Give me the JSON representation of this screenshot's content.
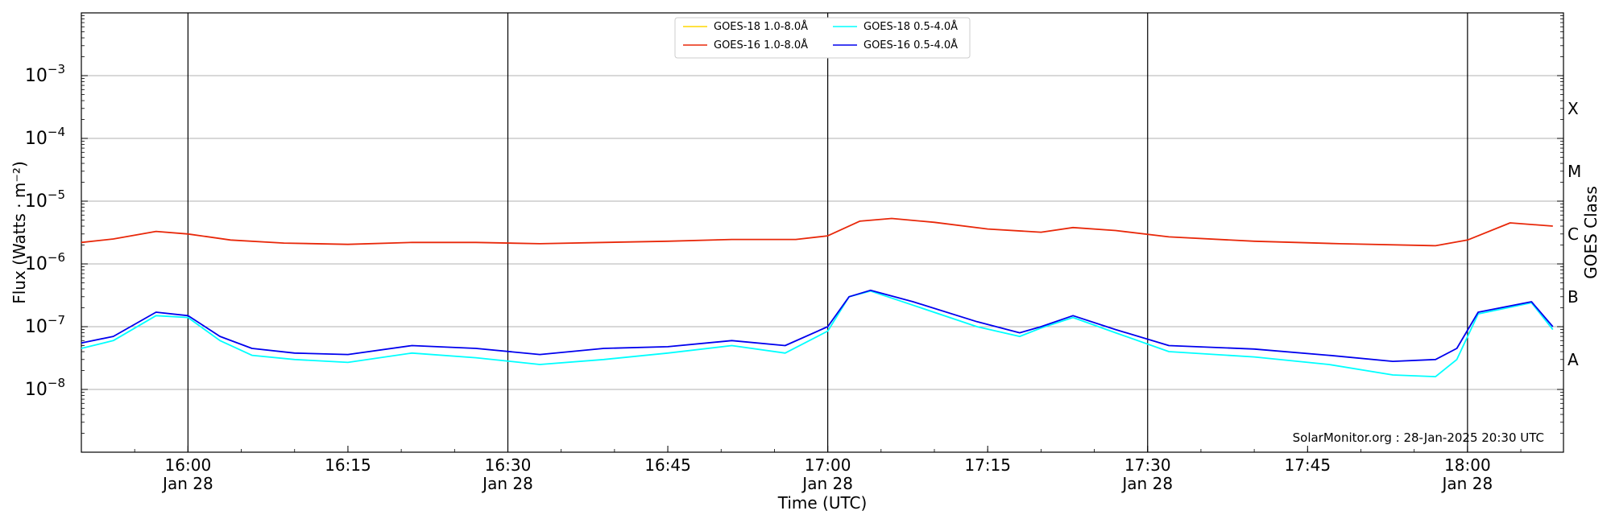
{
  "chart_data": {
    "type": "line",
    "xlabel": "Time (UTC)",
    "ylabel": "Flux (Watts · m⁻²)",
    "right_axis_label": "GOES Class",
    "y_scale": "log",
    "ylim": [
      1e-09,
      0.01
    ],
    "xlim": [
      "2025-01-28 15:50",
      "2025-01-28 18:09"
    ],
    "x_ticks": [
      {
        "t": "2025-01-28 16:00",
        "label": "16:00",
        "sublabel": "Jan 28",
        "major": true
      },
      {
        "t": "2025-01-28 16:15",
        "label": "16:15",
        "sublabel": "",
        "major": false
      },
      {
        "t": "2025-01-28 16:30",
        "label": "16:30",
        "sublabel": "Jan 28",
        "major": true
      },
      {
        "t": "2025-01-28 16:45",
        "label": "16:45",
        "sublabel": "",
        "major": false
      },
      {
        "t": "2025-01-28 17:00",
        "label": "17:00",
        "sublabel": "Jan 28",
        "major": true
      },
      {
        "t": "2025-01-28 17:15",
        "label": "17:15",
        "sublabel": "",
        "major": false
      },
      {
        "t": "2025-01-28 17:30",
        "label": "17:30",
        "sublabel": "Jan 28",
        "major": true
      },
      {
        "t": "2025-01-28 17:45",
        "label": "17:45",
        "sublabel": "",
        "major": false
      },
      {
        "t": "2025-01-28 18:00",
        "label": "18:00",
        "sublabel": "Jan 28",
        "major": true
      }
    ],
    "y_ticks": [
      {
        "value": 1e-08,
        "base": "10",
        "exp": "−8"
      },
      {
        "value": 1e-07,
        "base": "10",
        "exp": "−7"
      },
      {
        "value": 1e-06,
        "base": "10",
        "exp": "−6"
      },
      {
        "value": 1e-05,
        "base": "10",
        "exp": "−5"
      },
      {
        "value": 0.0001,
        "base": "10",
        "exp": "−4"
      },
      {
        "value": 0.001,
        "base": "10",
        "exp": "−3"
      }
    ],
    "goes_classes": [
      {
        "label": "A",
        "center": 3e-08
      },
      {
        "label": "B",
        "center": 3e-07
      },
      {
        "label": "C",
        "center": 3e-06
      },
      {
        "label": "M",
        "center": 3e-05
      },
      {
        "label": "X",
        "center": 0.0003
      }
    ],
    "grid": true,
    "legend_position": "top-center",
    "annotation": "SolarMonitor.org : 28-Jan-2025 20:30 UTC",
    "series": [
      {
        "name": "GOES-18 1.0-8.0Å",
        "color": "#ffd700",
        "x": [],
        "y": []
      },
      {
        "name": "GOES-16 1.0-8.0Å",
        "color": "#e8280a",
        "x": [
          "2025-01-28 15:50",
          "2025-01-28 15:53",
          "2025-01-28 15:57",
          "2025-01-28 16:00",
          "2025-01-28 16:04",
          "2025-01-28 16:09",
          "2025-01-28 16:15",
          "2025-01-28 16:21",
          "2025-01-28 16:27",
          "2025-01-28 16:33",
          "2025-01-28 16:39",
          "2025-01-28 16:45",
          "2025-01-28 16:51",
          "2025-01-28 16:57",
          "2025-01-28 17:00",
          "2025-01-28 17:03",
          "2025-01-28 17:06",
          "2025-01-28 17:10",
          "2025-01-28 17:15",
          "2025-01-28 17:20",
          "2025-01-28 17:23",
          "2025-01-28 17:27",
          "2025-01-28 17:32",
          "2025-01-28 17:40",
          "2025-01-28 17:48",
          "2025-01-28 17:57",
          "2025-01-28 18:00",
          "2025-01-28 18:04",
          "2025-01-28 18:08"
        ],
        "y": [
          2.2e-06,
          2.5e-06,
          3.3e-06,
          3e-06,
          2.4e-06,
          2.15e-06,
          2.05e-06,
          2.2e-06,
          2.2e-06,
          2.1e-06,
          2.2e-06,
          2.3e-06,
          2.45e-06,
          2.45e-06,
          2.8e-06,
          4.8e-06,
          5.3e-06,
          4.6e-06,
          3.6e-06,
          3.2e-06,
          3.8e-06,
          3.4e-06,
          2.7e-06,
          2.3e-06,
          2.1e-06,
          1.95e-06,
          2.4e-06,
          4.5e-06,
          4e-06
        ]
      },
      {
        "name": "GOES-18 0.5-4.0Å",
        "color": "#00ffff",
        "x": [
          "2025-01-28 15:50",
          "2025-01-28 15:53",
          "2025-01-28 15:57",
          "2025-01-28 16:00",
          "2025-01-28 16:03",
          "2025-01-28 16:06",
          "2025-01-28 16:10",
          "2025-01-28 16:15",
          "2025-01-28 16:21",
          "2025-01-28 16:27",
          "2025-01-28 16:33",
          "2025-01-28 16:39",
          "2025-01-28 16:45",
          "2025-01-28 16:51",
          "2025-01-28 16:56",
          "2025-01-28 17:00",
          "2025-01-28 17:02",
          "2025-01-28 17:04",
          "2025-01-28 17:08",
          "2025-01-28 17:14",
          "2025-01-28 17:18",
          "2025-01-28 17:20",
          "2025-01-28 17:23",
          "2025-01-28 17:27",
          "2025-01-28 17:32",
          "2025-01-28 17:40",
          "2025-01-28 17:47",
          "2025-01-28 17:53",
          "2025-01-28 17:57",
          "2025-01-28 17:59",
          "2025-01-28 18:01",
          "2025-01-28 18:06",
          "2025-01-28 18:08"
        ],
        "y": [
          4.5e-08,
          6e-08,
          1.5e-07,
          1.4e-07,
          6e-08,
          3.5e-08,
          3e-08,
          2.7e-08,
          3.8e-08,
          3.2e-08,
          2.5e-08,
          3e-08,
          3.8e-08,
          5e-08,
          3.8e-08,
          8.5e-08,
          3e-07,
          3.7e-07,
          2.2e-07,
          1e-07,
          7e-08,
          9.5e-08,
          1.4e-07,
          8e-08,
          4e-08,
          3.3e-08,
          2.5e-08,
          1.7e-08,
          1.6e-08,
          3e-08,
          1.6e-07,
          2.4e-07,
          9e-08
        ]
      },
      {
        "name": "GOES-16 0.5-4.0Å",
        "color": "#0000ee",
        "x": [
          "2025-01-28 15:50",
          "2025-01-28 15:53",
          "2025-01-28 15:57",
          "2025-01-28 16:00",
          "2025-01-28 16:03",
          "2025-01-28 16:06",
          "2025-01-28 16:10",
          "2025-01-28 16:15",
          "2025-01-28 16:21",
          "2025-01-28 16:27",
          "2025-01-28 16:33",
          "2025-01-28 16:39",
          "2025-01-28 16:45",
          "2025-01-28 16:51",
          "2025-01-28 16:56",
          "2025-01-28 17:00",
          "2025-01-28 17:02",
          "2025-01-28 17:04",
          "2025-01-28 17:08",
          "2025-01-28 17:14",
          "2025-01-28 17:18",
          "2025-01-28 17:20",
          "2025-01-28 17:23",
          "2025-01-28 17:27",
          "2025-01-28 17:32",
          "2025-01-28 17:40",
          "2025-01-28 17:47",
          "2025-01-28 17:53",
          "2025-01-28 17:57",
          "2025-01-28 17:59",
          "2025-01-28 18:01",
          "2025-01-28 18:06",
          "2025-01-28 18:08"
        ],
        "y": [
          5.5e-08,
          7e-08,
          1.7e-07,
          1.5e-07,
          7e-08,
          4.5e-08,
          3.8e-08,
          3.6e-08,
          5e-08,
          4.5e-08,
          3.6e-08,
          4.5e-08,
          4.8e-08,
          6e-08,
          5e-08,
          1e-07,
          3e-07,
          3.8e-07,
          2.5e-07,
          1.2e-07,
          8e-08,
          1e-07,
          1.5e-07,
          9e-08,
          5e-08,
          4.4e-08,
          3.5e-08,
          2.8e-08,
          3e-08,
          4.5e-08,
          1.7e-07,
          2.5e-07,
          1e-07
        ]
      }
    ]
  }
}
